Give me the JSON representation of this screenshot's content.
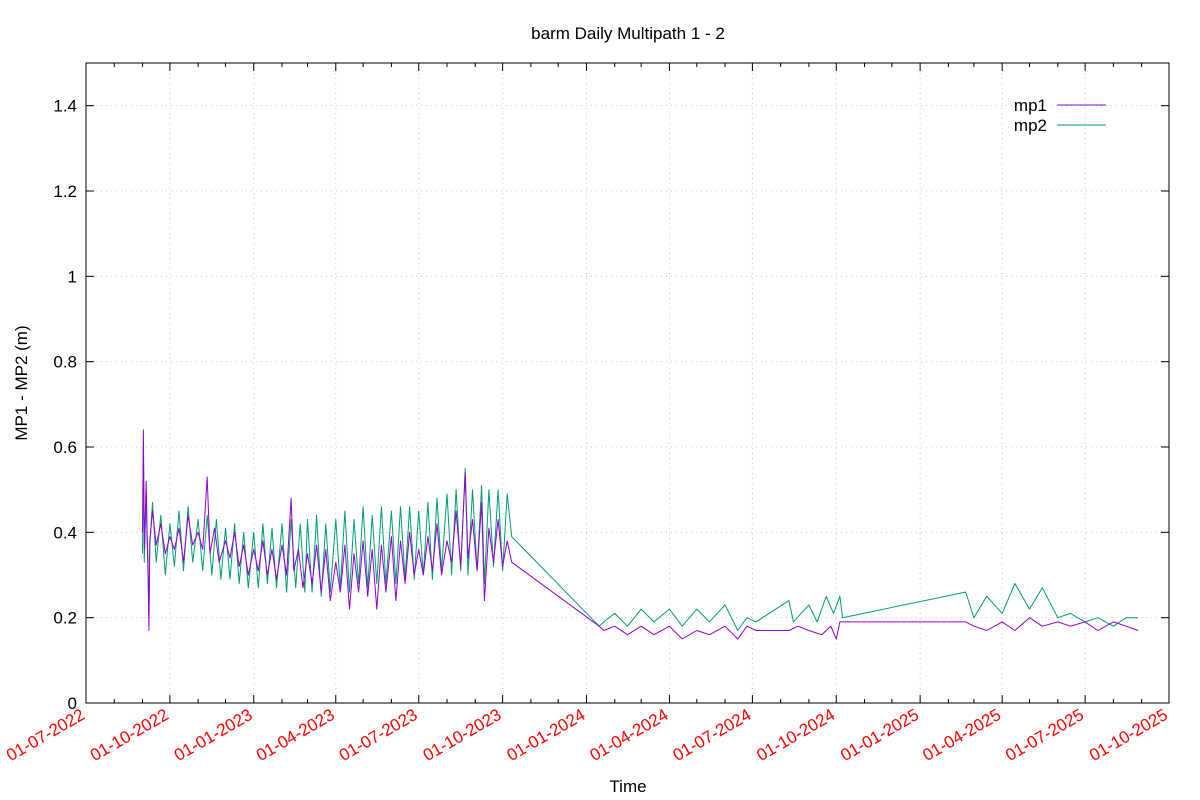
{
  "chart_data": {
    "type": "line",
    "title": "barm Daily Multipath 1 - 2",
    "xlabel": "Time",
    "ylabel": "MP1 - MP2 (m)",
    "xlim": [
      "2022-07-01",
      "2025-10-01"
    ],
    "ylim": [
      0,
      1.5
    ],
    "y_ticks": [
      0,
      0.2,
      0.4,
      0.6,
      0.8,
      1,
      1.2,
      1.4
    ],
    "y_tick_labels": [
      "0",
      "0.2",
      "0.4",
      "0.6",
      "0.8",
      "1",
      "1.2",
      "1.4"
    ],
    "x_ticks": [
      "2022-07-01",
      "2022-10-01",
      "2023-01-01",
      "2023-04-01",
      "2023-07-01",
      "2023-10-01",
      "2024-01-01",
      "2024-04-01",
      "2024-07-01",
      "2024-10-01",
      "2025-01-01",
      "2025-04-01",
      "2025-07-01",
      "2025-10-01"
    ],
    "x_tick_labels": [
      "01-07-2022",
      "01-10-2022",
      "01-01-2023",
      "01-04-2023",
      "01-07-2023",
      "01-10-2023",
      "01-01-2024",
      "01-04-2024",
      "01-07-2024",
      "01-10-2024",
      "01-01-2025",
      "01-04-2025",
      "01-07-2025",
      "01-10-2025"
    ],
    "x_tick_label_color": "#ff0000",
    "grid": true,
    "legend_position": "top-right",
    "series": [
      {
        "name": "mp1",
        "color": "#9400d3",
        "points": [
          [
            "2022-09-01",
            0.4
          ],
          [
            "2022-09-02",
            0.64
          ],
          [
            "2022-09-03",
            0.36
          ],
          [
            "2022-09-05",
            0.52
          ],
          [
            "2022-09-06",
            0.4
          ],
          [
            "2022-09-07",
            0.33
          ],
          [
            "2022-09-08",
            0.17
          ],
          [
            "2022-09-09",
            0.38
          ],
          [
            "2022-09-12",
            0.45
          ],
          [
            "2022-09-16",
            0.37
          ],
          [
            "2022-09-21",
            0.42
          ],
          [
            "2022-09-26",
            0.35
          ],
          [
            "2022-10-01",
            0.39
          ],
          [
            "2022-10-06",
            0.36
          ],
          [
            "2022-10-11",
            0.41
          ],
          [
            "2022-10-16",
            0.33
          ],
          [
            "2022-10-21",
            0.44
          ],
          [
            "2022-10-26",
            0.37
          ],
          [
            "2022-11-01",
            0.4
          ],
          [
            "2022-11-06",
            0.36
          ],
          [
            "2022-11-11",
            0.53
          ],
          [
            "2022-11-14",
            0.35
          ],
          [
            "2022-11-19",
            0.41
          ],
          [
            "2022-11-24",
            0.33
          ],
          [
            "2022-12-01",
            0.38
          ],
          [
            "2022-12-06",
            0.34
          ],
          [
            "2022-12-11",
            0.4
          ],
          [
            "2022-12-16",
            0.32
          ],
          [
            "2022-12-21",
            0.37
          ],
          [
            "2022-12-26",
            0.3
          ],
          [
            "2023-01-01",
            0.36
          ],
          [
            "2023-01-06",
            0.31
          ],
          [
            "2023-01-11",
            0.38
          ],
          [
            "2023-01-16",
            0.3
          ],
          [
            "2023-01-21",
            0.36
          ],
          [
            "2023-01-26",
            0.29
          ],
          [
            "2023-02-01",
            0.37
          ],
          [
            "2023-02-06",
            0.3
          ],
          [
            "2023-02-11",
            0.48
          ],
          [
            "2023-02-14",
            0.31
          ],
          [
            "2023-02-19",
            0.36
          ],
          [
            "2023-02-24",
            0.27
          ],
          [
            "2023-03-01",
            0.35
          ],
          [
            "2023-03-06",
            0.28
          ],
          [
            "2023-03-11",
            0.37
          ],
          [
            "2023-03-16",
            0.26
          ],
          [
            "2023-03-21",
            0.36
          ],
          [
            "2023-03-26",
            0.24
          ],
          [
            "2023-04-01",
            0.33
          ],
          [
            "2023-04-06",
            0.26
          ],
          [
            "2023-04-11",
            0.37
          ],
          [
            "2023-04-16",
            0.22
          ],
          [
            "2023-04-21",
            0.35
          ],
          [
            "2023-04-26",
            0.26
          ],
          [
            "2023-05-01",
            0.38
          ],
          [
            "2023-05-06",
            0.25
          ],
          [
            "2023-05-11",
            0.36
          ],
          [
            "2023-05-16",
            0.22
          ],
          [
            "2023-05-21",
            0.37
          ],
          [
            "2023-05-26",
            0.26
          ],
          [
            "2023-06-01",
            0.39
          ],
          [
            "2023-06-06",
            0.24
          ],
          [
            "2023-06-11",
            0.38
          ],
          [
            "2023-06-16",
            0.28
          ],
          [
            "2023-06-21",
            0.4
          ],
          [
            "2023-06-26",
            0.3
          ],
          [
            "2023-07-01",
            0.36
          ],
          [
            "2023-07-06",
            0.3
          ],
          [
            "2023-07-11",
            0.39
          ],
          [
            "2023-07-16",
            0.31
          ],
          [
            "2023-07-21",
            0.42
          ],
          [
            "2023-07-26",
            0.3
          ],
          [
            "2023-08-01",
            0.38
          ],
          [
            "2023-08-06",
            0.33
          ],
          [
            "2023-08-11",
            0.45
          ],
          [
            "2023-08-16",
            0.32
          ],
          [
            "2023-08-21",
            0.54
          ],
          [
            "2023-08-24",
            0.34
          ],
          [
            "2023-08-29",
            0.43
          ],
          [
            "2023-09-03",
            0.31
          ],
          [
            "2023-09-08",
            0.47
          ],
          [
            "2023-09-11",
            0.24
          ],
          [
            "2023-09-16",
            0.41
          ],
          [
            "2023-09-21",
            0.33
          ],
          [
            "2023-09-26",
            0.43
          ],
          [
            "2023-10-01",
            0.32
          ],
          [
            "2023-10-06",
            0.38
          ],
          [
            "2023-10-11",
            0.33
          ],
          [
            "2024-01-15",
            0.18
          ],
          [
            "2024-01-20",
            0.17
          ],
          [
            "2024-02-01",
            0.18
          ],
          [
            "2024-02-15",
            0.16
          ],
          [
            "2024-03-01",
            0.18
          ],
          [
            "2024-03-15",
            0.16
          ],
          [
            "2024-04-01",
            0.18
          ],
          [
            "2024-04-15",
            0.15
          ],
          [
            "2024-05-01",
            0.17
          ],
          [
            "2024-05-15",
            0.16
          ],
          [
            "2024-06-01",
            0.18
          ],
          [
            "2024-06-15",
            0.15
          ],
          [
            "2024-06-25",
            0.18
          ],
          [
            "2024-07-05",
            0.17
          ],
          [
            "2024-08-10",
            0.17
          ],
          [
            "2024-08-20",
            0.18
          ],
          [
            "2024-09-01",
            0.17
          ],
          [
            "2024-09-15",
            0.16
          ],
          [
            "2024-09-25",
            0.18
          ],
          [
            "2024-10-01",
            0.15
          ],
          [
            "2024-10-05",
            0.19
          ],
          [
            "2024-12-01",
            0.19
          ],
          [
            "2025-02-20",
            0.19
          ],
          [
            "2025-03-01",
            0.18
          ],
          [
            "2025-03-15",
            0.17
          ],
          [
            "2025-04-01",
            0.19
          ],
          [
            "2025-04-15",
            0.17
          ],
          [
            "2025-05-01",
            0.2
          ],
          [
            "2025-05-15",
            0.18
          ],
          [
            "2025-06-01",
            0.19
          ],
          [
            "2025-06-15",
            0.18
          ],
          [
            "2025-07-01",
            0.19
          ],
          [
            "2025-07-15",
            0.17
          ],
          [
            "2025-08-01",
            0.19
          ],
          [
            "2025-08-15",
            0.18
          ],
          [
            "2025-08-28",
            0.17
          ]
        ]
      },
      {
        "name": "mp2",
        "color": "#009e73",
        "points": [
          [
            "2022-09-01",
            0.35
          ],
          [
            "2022-09-02",
            0.6
          ],
          [
            "2022-09-03",
            0.33
          ],
          [
            "2022-09-05",
            0.49
          ],
          [
            "2022-09-06",
            0.38
          ],
          [
            "2022-09-07",
            0.3
          ],
          [
            "2022-09-08",
            0.2
          ],
          [
            "2022-09-09",
            0.37
          ],
          [
            "2022-09-12",
            0.47
          ],
          [
            "2022-09-16",
            0.33
          ],
          [
            "2022-09-21",
            0.44
          ],
          [
            "2022-09-26",
            0.3
          ],
          [
            "2022-10-01",
            0.42
          ],
          [
            "2022-10-06",
            0.32
          ],
          [
            "2022-10-11",
            0.45
          ],
          [
            "2022-10-16",
            0.31
          ],
          [
            "2022-10-21",
            0.46
          ],
          [
            "2022-10-26",
            0.33
          ],
          [
            "2022-11-01",
            0.43
          ],
          [
            "2022-11-06",
            0.31
          ],
          [
            "2022-11-11",
            0.44
          ],
          [
            "2022-11-16",
            0.3
          ],
          [
            "2022-11-21",
            0.43
          ],
          [
            "2022-11-26",
            0.29
          ],
          [
            "2022-12-01",
            0.41
          ],
          [
            "2022-12-06",
            0.29
          ],
          [
            "2022-12-11",
            0.42
          ],
          [
            "2022-12-16",
            0.28
          ],
          [
            "2022-12-21",
            0.4
          ],
          [
            "2022-12-26",
            0.27
          ],
          [
            "2023-01-01",
            0.4
          ],
          [
            "2023-01-06",
            0.27
          ],
          [
            "2023-01-11",
            0.42
          ],
          [
            "2023-01-16",
            0.28
          ],
          [
            "2023-01-21",
            0.41
          ],
          [
            "2023-01-26",
            0.27
          ],
          [
            "2023-02-01",
            0.42
          ],
          [
            "2023-02-06",
            0.26
          ],
          [
            "2023-02-11",
            0.43
          ],
          [
            "2023-02-16",
            0.27
          ],
          [
            "2023-02-21",
            0.42
          ],
          [
            "2023-02-26",
            0.26
          ],
          [
            "2023-03-01",
            0.43
          ],
          [
            "2023-03-06",
            0.26
          ],
          [
            "2023-03-11",
            0.44
          ],
          [
            "2023-03-16",
            0.25
          ],
          [
            "2023-03-21",
            0.42
          ],
          [
            "2023-03-26",
            0.26
          ],
          [
            "2023-04-01",
            0.43
          ],
          [
            "2023-04-06",
            0.27
          ],
          [
            "2023-04-11",
            0.45
          ],
          [
            "2023-04-16",
            0.26
          ],
          [
            "2023-04-21",
            0.43
          ],
          [
            "2023-04-26",
            0.28
          ],
          [
            "2023-05-01",
            0.46
          ],
          [
            "2023-05-06",
            0.27
          ],
          [
            "2023-05-11",
            0.44
          ],
          [
            "2023-05-16",
            0.28
          ],
          [
            "2023-05-21",
            0.46
          ],
          [
            "2023-05-26",
            0.28
          ],
          [
            "2023-06-01",
            0.45
          ],
          [
            "2023-06-06",
            0.28
          ],
          [
            "2023-06-11",
            0.46
          ],
          [
            "2023-06-16",
            0.29
          ],
          [
            "2023-06-21",
            0.46
          ],
          [
            "2023-06-26",
            0.29
          ],
          [
            "2023-07-01",
            0.45
          ],
          [
            "2023-07-06",
            0.3
          ],
          [
            "2023-07-11",
            0.47
          ],
          [
            "2023-07-16",
            0.29
          ],
          [
            "2023-07-21",
            0.48
          ],
          [
            "2023-07-26",
            0.31
          ],
          [
            "2023-08-01",
            0.49
          ],
          [
            "2023-08-06",
            0.3
          ],
          [
            "2023-08-11",
            0.5
          ],
          [
            "2023-08-16",
            0.31
          ],
          [
            "2023-08-21",
            0.55
          ],
          [
            "2023-08-24",
            0.3
          ],
          [
            "2023-08-29",
            0.5
          ],
          [
            "2023-09-03",
            0.31
          ],
          [
            "2023-09-08",
            0.51
          ],
          [
            "2023-09-11",
            0.28
          ],
          [
            "2023-09-16",
            0.5
          ],
          [
            "2023-09-21",
            0.32
          ],
          [
            "2023-09-26",
            0.5
          ],
          [
            "2023-10-01",
            0.31
          ],
          [
            "2023-10-06",
            0.49
          ],
          [
            "2023-10-11",
            0.39
          ],
          [
            "2024-01-15",
            0.18
          ],
          [
            "2024-01-20",
            0.19
          ],
          [
            "2024-02-01",
            0.21
          ],
          [
            "2024-02-15",
            0.18
          ],
          [
            "2024-03-01",
            0.22
          ],
          [
            "2024-03-15",
            0.19
          ],
          [
            "2024-04-01",
            0.22
          ],
          [
            "2024-04-15",
            0.18
          ],
          [
            "2024-05-01",
            0.22
          ],
          [
            "2024-05-15",
            0.19
          ],
          [
            "2024-06-01",
            0.23
          ],
          [
            "2024-06-15",
            0.17
          ],
          [
            "2024-06-25",
            0.2
          ],
          [
            "2024-07-05",
            0.19
          ],
          [
            "2024-08-10",
            0.24
          ],
          [
            "2024-08-15",
            0.19
          ],
          [
            "2024-09-01",
            0.23
          ],
          [
            "2024-09-10",
            0.19
          ],
          [
            "2024-09-20",
            0.25
          ],
          [
            "2024-09-28",
            0.21
          ],
          [
            "2024-10-05",
            0.25
          ],
          [
            "2024-10-08",
            0.2
          ],
          [
            "2025-02-20",
            0.26
          ],
          [
            "2025-03-01",
            0.2
          ],
          [
            "2025-03-15",
            0.25
          ],
          [
            "2025-04-01",
            0.21
          ],
          [
            "2025-04-15",
            0.28
          ],
          [
            "2025-05-01",
            0.22
          ],
          [
            "2025-05-15",
            0.27
          ],
          [
            "2025-06-01",
            0.2
          ],
          [
            "2025-06-15",
            0.21
          ],
          [
            "2025-07-01",
            0.19
          ],
          [
            "2025-07-15",
            0.2
          ],
          [
            "2025-08-01",
            0.18
          ],
          [
            "2025-08-15",
            0.2
          ],
          [
            "2025-08-28",
            0.2
          ]
        ]
      }
    ]
  }
}
